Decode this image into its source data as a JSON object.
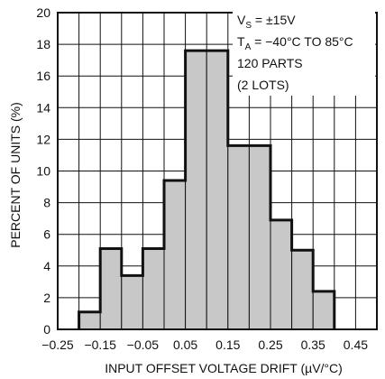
{
  "chart_data": {
    "type": "bar",
    "xlabel": "INPUT OFFSET VOLTAGE DRIFT (µV/°C)",
    "ylabel": "PERCENT OF UNITS (%)",
    "xlim": [
      -0.25,
      0.5
    ],
    "ylim": [
      0,
      20
    ],
    "grid": true,
    "x_ticks": [
      "−0.25",
      "−0.15",
      "−0.05",
      "0.05",
      "0.15",
      "0.25",
      "0.35",
      "0.45"
    ],
    "y_ticks": [
      "0",
      "2",
      "4",
      "6",
      "8",
      "10",
      "12",
      "14",
      "16",
      "18",
      "20"
    ],
    "bin_width": 0.05,
    "bin_starts": [
      -0.2,
      -0.15,
      -0.1,
      -0.05,
      0.0,
      0.05,
      0.1,
      0.15,
      0.2,
      0.25,
      0.3,
      0.35
    ],
    "values": [
      1.1,
      5.1,
      3.4,
      5.1,
      9.4,
      17.6,
      17.6,
      11.6,
      11.6,
      6.9,
      5.0,
      2.4
    ],
    "bar_color": "#c8c8c8",
    "annotation": {
      "line1": "V",
      "line1_sub": "S",
      "line1_rest": " = ±15V",
      "line2": "T",
      "line2_sub": "A",
      "line2_rest": " = −40°C TO 85°C",
      "line3": "120 PARTS",
      "line4": "(2 LOTS)"
    }
  }
}
